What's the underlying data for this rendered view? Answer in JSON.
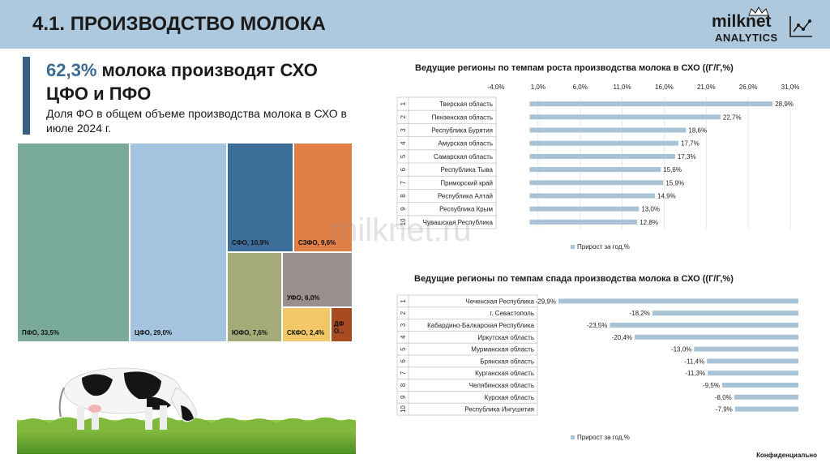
{
  "header": {
    "title": "4.1. ПРОИЗВОДСТВО МОЛОКА"
  },
  "logo": {
    "name": "milknet",
    "sub": "ANALYTICS"
  },
  "headline": {
    "pct": "62,3%",
    "rest": " молока производят СХО ЦФО и ПФО"
  },
  "subline": "Доля ФО в общем объеме производства молока в СХО в июле 2024 г.",
  "watermark": "milknet.ru",
  "footer": "Конфиденциально",
  "colors": {
    "header": "#aec9de",
    "pfo": "#7aab9a",
    "cfo": "#a3c3de",
    "sfo": "#3d6e99",
    "szfo": "#e07f47",
    "yufo": "#a4aa78",
    "ufo": "#9b8e8f",
    "skfo": "#f2c866",
    "dfo": "#a84a22",
    "bar": "#a9c3d6"
  },
  "chart_data": [
    {
      "type": "treemap",
      "title": "Доля ФО в общем объеме производства молока в СХО в июле 2024 г.",
      "items": [
        {
          "label": "ПФО, 33,5%",
          "value": 33.5
        },
        {
          "label": "ЦФО, 29,0%",
          "value": 29.0
        },
        {
          "label": "СФО, 10,9%",
          "value": 10.9
        },
        {
          "label": "СЗФО, 9,6%",
          "value": 9.6
        },
        {
          "label": "ЮФО, 7,6%",
          "value": 7.6
        },
        {
          "label": "УФО, 6,0%",
          "value": 6.0
        },
        {
          "label": "СКФО, 2,4%",
          "value": 2.4
        },
        {
          "label": "ДФ О...",
          "value": 1.0
        }
      ]
    },
    {
      "type": "bar",
      "orientation": "horizontal",
      "title": "Ведущие регионы по темпам роста производства молока в СХО ((Г/Г,%)",
      "ranks": [
        "1",
        "2",
        "3",
        "4",
        "5",
        "6",
        "7",
        "8",
        "9",
        "10"
      ],
      "categories": [
        "Тверская область",
        "Пензенская область",
        "Республика Бурятия",
        "Амурская область",
        "Самарская область",
        "Республика Тыва",
        "Приморский край",
        "Республика Алтай",
        "Республика Крым",
        "Чувашская Республика"
      ],
      "values": [
        28.9,
        22.7,
        18.6,
        17.7,
        17.3,
        15.6,
        15.9,
        14.9,
        13.0,
        12.8
      ],
      "value_labels": [
        "28,9%",
        "22,7%",
        "18,6%",
        "17,7%",
        "17,3%",
        "15,6%",
        "15,9%",
        "14,9%",
        "13,0%",
        "12,8%"
      ],
      "xticks": [
        "-4,0%",
        "1,0%",
        "6,0%",
        "11,0%",
        "16,0%",
        "21,0%",
        "26,0%",
        "31,0%"
      ],
      "xlim": [
        -4,
        31
      ],
      "legend": "Прирост за год,%",
      "legend_position": "bottom"
    },
    {
      "type": "bar",
      "orientation": "horizontal",
      "title": "Ведущие регионы по темпам спада производства молока в СХО ((Г/Г,%)",
      "ranks": [
        "1",
        "2",
        "3",
        "4",
        "5",
        "6",
        "7",
        "8",
        "9",
        "10"
      ],
      "categories": [
        "Чеченская Республика",
        "г. Севастополь",
        "Кабардино-Балкарская Республика",
        "Иркутская область",
        "Мурманская область",
        "Брянская область",
        "Курганская область",
        "Челябинская область",
        "Курская область",
        "Республика Ингушетия"
      ],
      "values": [
        -29.9,
        -18.2,
        -23.5,
        -20.4,
        -13.0,
        -11.4,
        -11.3,
        -9.5,
        -8.0,
        -7.9
      ],
      "value_labels": [
        "-29,9%",
        "-18,2%",
        "-23,5%",
        "-20,4%",
        "-13,0%",
        "-11,4%",
        "-11,3%",
        "-9,5%",
        "-8,0%",
        "-7,9%"
      ],
      "xlim": [
        -30,
        0
      ],
      "legend": "Прирост за год,%",
      "legend_position": "bottom"
    }
  ]
}
